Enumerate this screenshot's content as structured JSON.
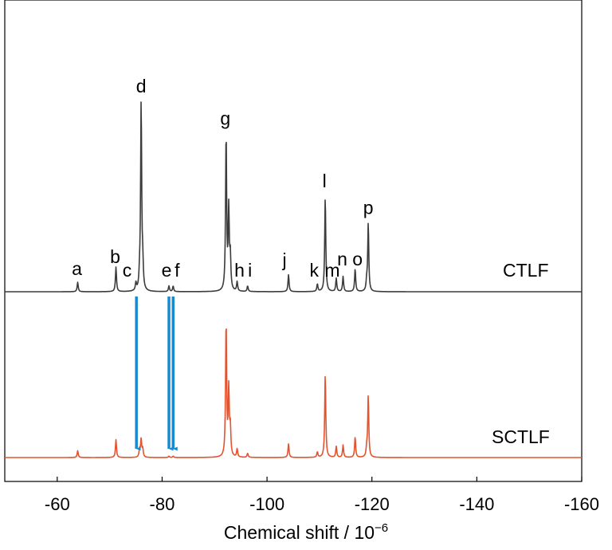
{
  "chart_data": {
    "type": "line",
    "title": "",
    "xlabel": "Chemical shift / 10",
    "xlabel_superscript": "−6",
    "ylabel": "",
    "xlim": [
      -50,
      -160
    ],
    "x_reversed": true,
    "xticks": [
      -60,
      -80,
      -100,
      -120,
      -140,
      -160
    ],
    "xtick_labels": [
      "-60",
      "-80",
      "-100",
      "-120",
      "-140",
      "-160"
    ],
    "grid": false,
    "legend": "none",
    "series": [
      {
        "name": "CTLF",
        "color": "#3c3c3c",
        "peaks": [
          {
            "x": -63.9,
            "height": 0.05,
            "label": "a"
          },
          {
            "x": -71.2,
            "height": 0.13,
            "label": "b"
          },
          {
            "x": -75.0,
            "height": 0.04,
            "label": "c"
          },
          {
            "x": -75.7,
            "height": 0.06
          },
          {
            "x": -76.0,
            "height": 1.0,
            "label": "d"
          },
          {
            "x": -76.3,
            "height": 0.12
          },
          {
            "x": -81.3,
            "height": 0.03,
            "label": "e"
          },
          {
            "x": -82.1,
            "height": 0.03,
            "label": "f"
          },
          {
            "x": -92.2,
            "height": 0.83,
            "label": "g"
          },
          {
            "x": -92.7,
            "height": 0.42
          },
          {
            "x": -93.0,
            "height": 0.17
          },
          {
            "x": -94.3,
            "height": 0.05,
            "label": "h"
          },
          {
            "x": -96.3,
            "height": 0.03,
            "label": "i"
          },
          {
            "x": -104.1,
            "height": 0.09,
            "label": "j"
          },
          {
            "x": -109.6,
            "height": 0.04,
            "label": "k"
          },
          {
            "x": -111.1,
            "height": 0.5,
            "label": "l"
          },
          {
            "x": -113.2,
            "height": 0.07,
            "label": "m"
          },
          {
            "x": -114.5,
            "height": 0.08,
            "label": "n"
          },
          {
            "x": -116.8,
            "height": 0.12,
            "label": "o"
          },
          {
            "x": -119.0,
            "height": 0.05
          },
          {
            "x": -119.3,
            "height": 0.36,
            "label": "p"
          }
        ]
      },
      {
        "name": "SCTLF",
        "color": "#e3532f",
        "peaks": [
          {
            "x": -63.9,
            "height": 0.05
          },
          {
            "x": -71.2,
            "height": 0.13
          },
          {
            "x": -75.7,
            "height": 0.06
          },
          {
            "x": -76.0,
            "height": 0.13
          },
          {
            "x": -76.3,
            "height": 0.06
          },
          {
            "x": -81.3,
            "height": 0.01
          },
          {
            "x": -82.1,
            "height": 0.01
          },
          {
            "x": -92.2,
            "height": 0.99
          },
          {
            "x": -92.7,
            "height": 0.48
          },
          {
            "x": -93.0,
            "height": 0.2
          },
          {
            "x": -94.3,
            "height": 0.06
          },
          {
            "x": -96.3,
            "height": 0.03
          },
          {
            "x": -104.1,
            "height": 0.1
          },
          {
            "x": -109.6,
            "height": 0.04
          },
          {
            "x": -111.1,
            "height": 0.61
          },
          {
            "x": -113.2,
            "height": 0.08
          },
          {
            "x": -114.5,
            "height": 0.09
          },
          {
            "x": -116.8,
            "height": 0.15
          },
          {
            "x": -119.0,
            "height": 0.06
          },
          {
            "x": -119.3,
            "height": 0.45
          }
        ]
      }
    ],
    "arrows": {
      "color": "#1a8ad0",
      "direction": "down",
      "x": [
        -75.1,
        -81.3,
        -82.1
      ]
    }
  }
}
